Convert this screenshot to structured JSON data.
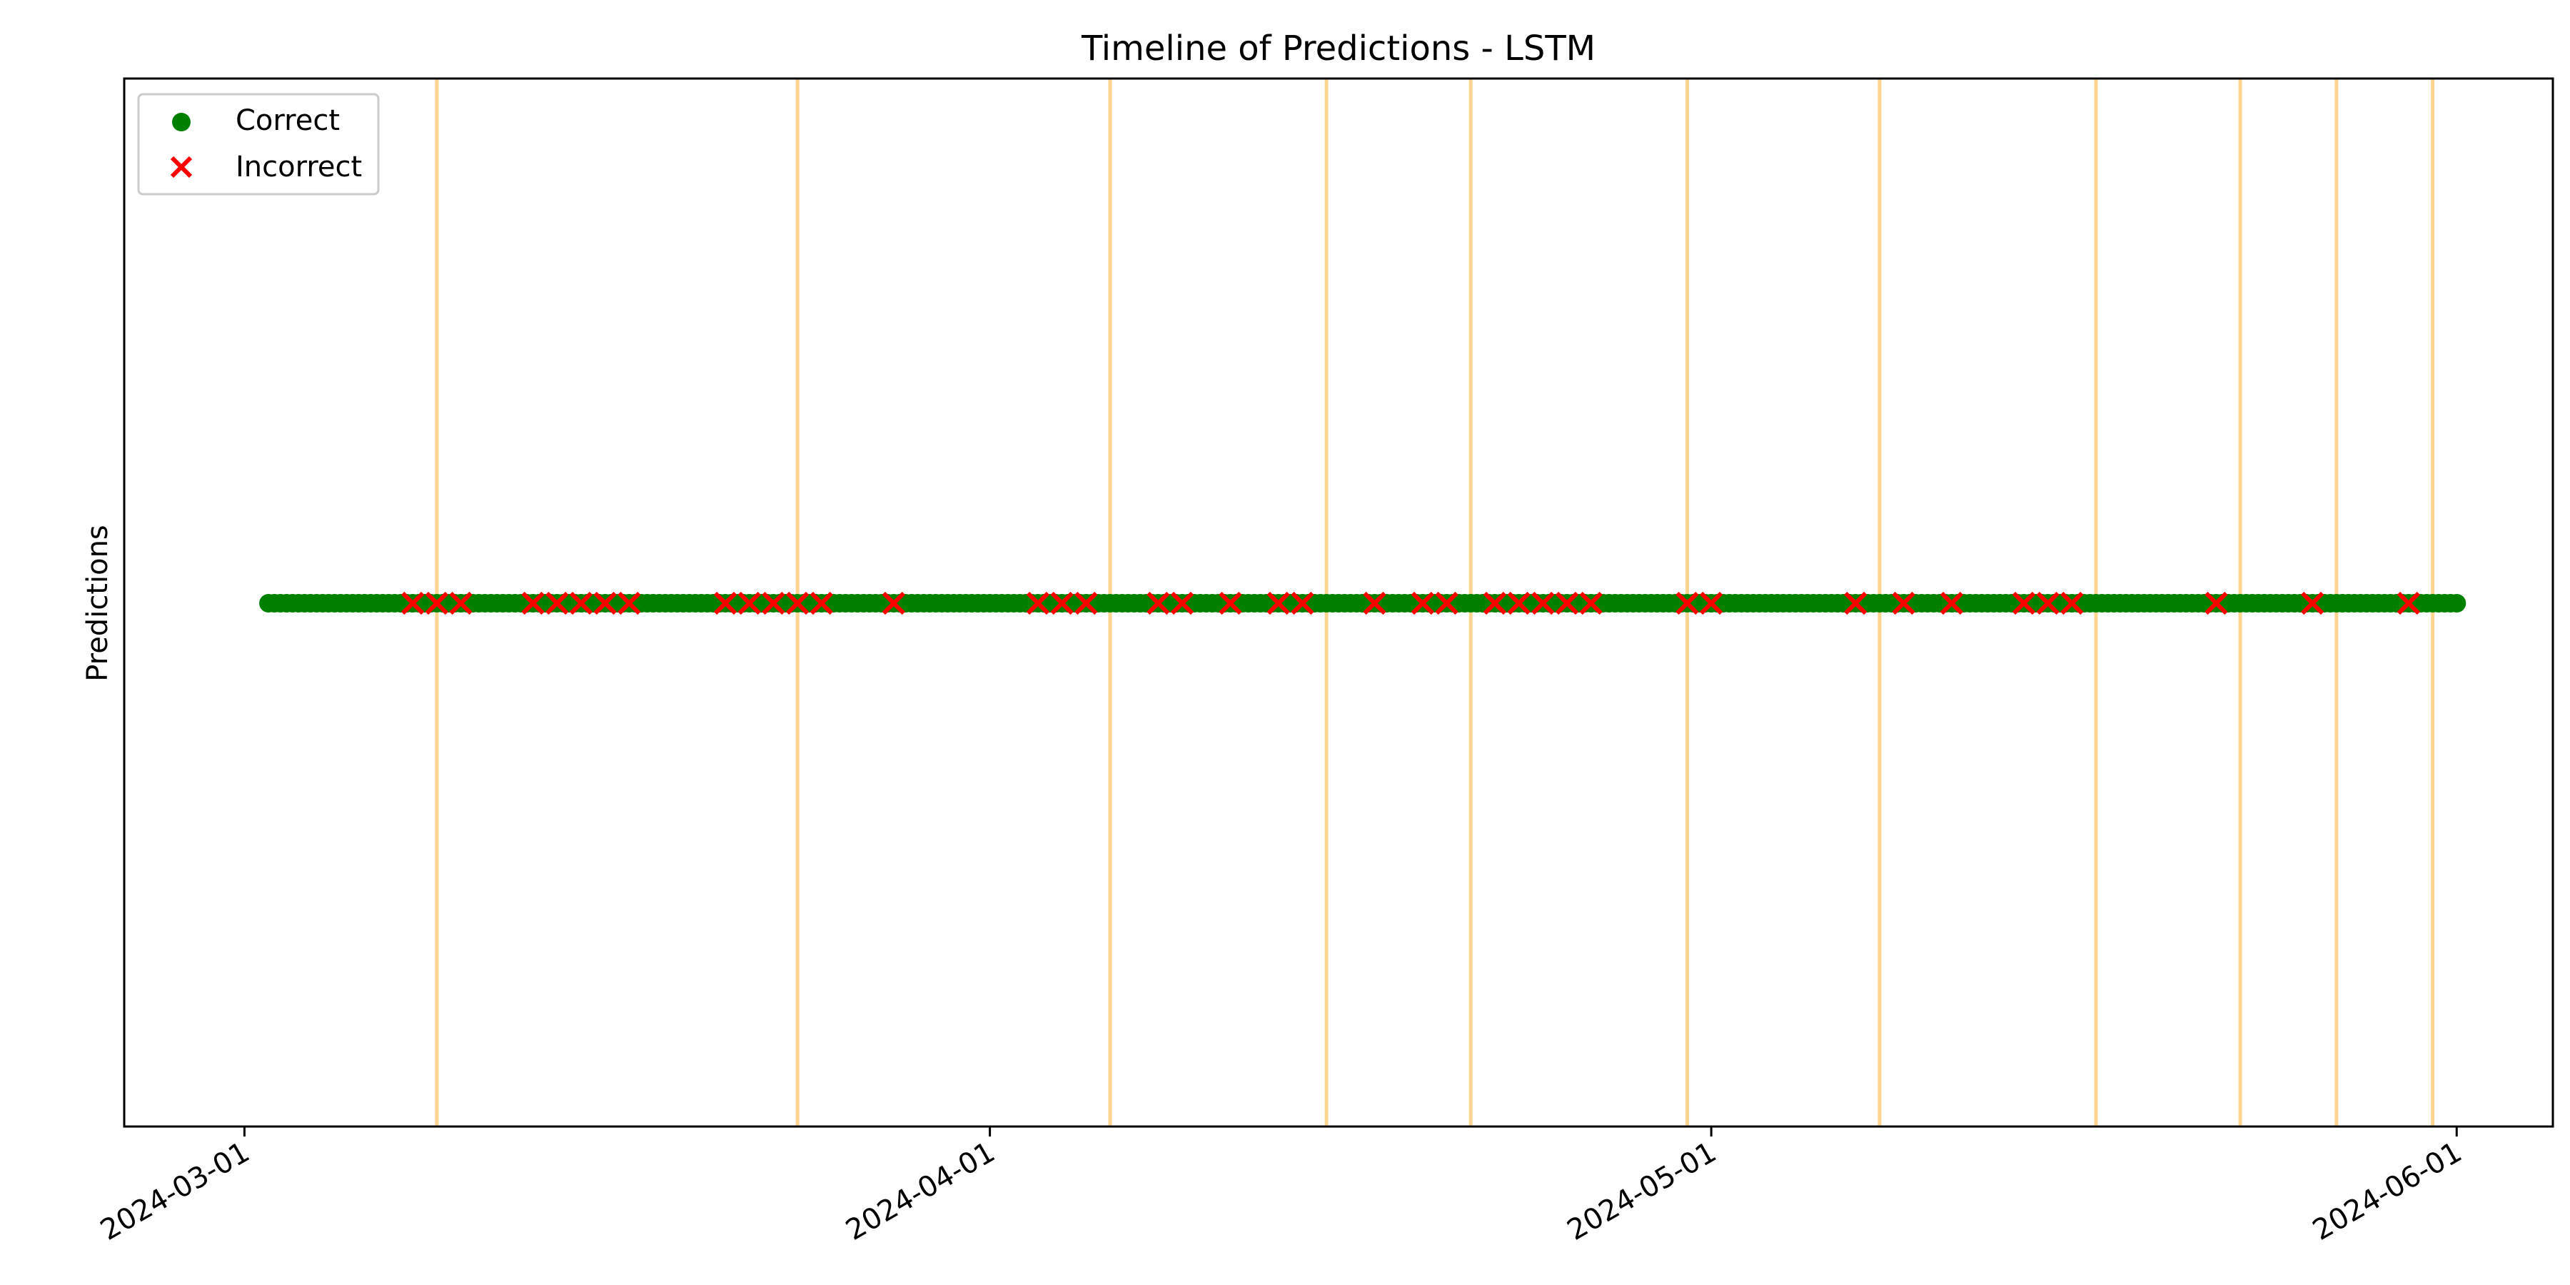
{
  "chart_data": {
    "type": "scatter",
    "title": "Timeline of Predictions - LSTM",
    "xlabel": "",
    "ylabel": "Predictions",
    "x_axis": "date",
    "xlim": [
      "2024-02-25",
      "2024-06-05"
    ],
    "x_ticks": [
      "2024-03-01",
      "2024-04-01",
      "2024-05-01",
      "2024-06-01"
    ],
    "y_ticks_visible": false,
    "grid": false,
    "legend": "upper-left",
    "date_range": [
      "2024-03-02",
      "2024-06-01"
    ],
    "series": [
      {
        "name": "Correct",
        "marker": "circle",
        "color": "#008000",
        "y": 0,
        "fill": "continuous daily points over date_range"
      },
      {
        "name": "Incorrect",
        "marker": "x",
        "color": "#ff0000",
        "y": 0,
        "dates": [
          "2024-03-08",
          "2024-03-09",
          "2024-03-10",
          "2024-03-13",
          "2024-03-14",
          "2024-03-15",
          "2024-03-16",
          "2024-03-17",
          "2024-03-21",
          "2024-03-22",
          "2024-03-23",
          "2024-03-24",
          "2024-03-25",
          "2024-03-28",
          "2024-04-03",
          "2024-04-04",
          "2024-04-05",
          "2024-04-08",
          "2024-04-09",
          "2024-04-11",
          "2024-04-13",
          "2024-04-14",
          "2024-04-17",
          "2024-04-19",
          "2024-04-20",
          "2024-04-22",
          "2024-04-23",
          "2024-04-24",
          "2024-04-25",
          "2024-04-26",
          "2024-04-30",
          "2024-05-01",
          "2024-05-07",
          "2024-05-09",
          "2024-05-11",
          "2024-05-14",
          "2024-05-15",
          "2024-05-16",
          "2024-05-22",
          "2024-05-26",
          "2024-05-30"
        ]
      }
    ],
    "vertical_lines": {
      "color": "#ffd591",
      "dates": [
        "2024-03-09",
        "2024-03-24",
        "2024-04-06",
        "2024-04-15",
        "2024-04-21",
        "2024-04-30",
        "2024-05-08",
        "2024-05-17",
        "2024-05-23",
        "2024-05-27",
        "2024-05-31"
      ]
    }
  }
}
